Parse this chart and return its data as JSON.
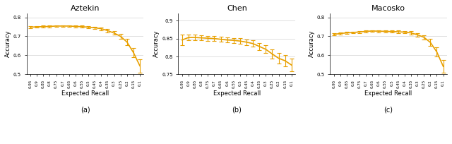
{
  "titles": [
    "Aztekin",
    "Chen",
    "Macosko"
  ],
  "sublabels": [
    "(a)",
    "(b)",
    "(c)"
  ],
  "xlabel": "Expected Recall",
  "ylabel": "Accuracy",
  "line_color": "#E8A000",
  "x_ticks": [
    0.95,
    0.9,
    0.85,
    0.8,
    0.75,
    0.7,
    0.65,
    0.6,
    0.55,
    0.5,
    0.45,
    0.4,
    0.35,
    0.3,
    0.25,
    0.2,
    0.15,
    0.1
  ],
  "aztekin": {
    "mean": [
      0.748,
      0.75,
      0.751,
      0.752,
      0.754,
      0.754,
      0.754,
      0.752,
      0.751,
      0.748,
      0.745,
      0.74,
      0.73,
      0.717,
      0.7,
      0.67,
      0.615,
      0.545
    ],
    "err": [
      0.005,
      0.005,
      0.005,
      0.005,
      0.005,
      0.005,
      0.005,
      0.005,
      0.005,
      0.005,
      0.006,
      0.007,
      0.008,
      0.009,
      0.012,
      0.018,
      0.025,
      0.035
    ],
    "ylim": [
      0.5,
      0.82
    ],
    "yticks": [
      0.5,
      0.6,
      0.7,
      0.8
    ]
  },
  "chen": {
    "mean": [
      0.846,
      0.853,
      0.853,
      0.852,
      0.851,
      0.85,
      0.848,
      0.846,
      0.845,
      0.843,
      0.84,
      0.836,
      0.828,
      0.82,
      0.807,
      0.795,
      0.788,
      0.776
    ],
    "err": [
      0.015,
      0.008,
      0.008,
      0.007,
      0.007,
      0.007,
      0.007,
      0.007,
      0.007,
      0.008,
      0.008,
      0.009,
      0.01,
      0.011,
      0.012,
      0.014,
      0.016,
      0.018
    ],
    "ylim": [
      0.75,
      0.92
    ],
    "yticks": [
      0.75,
      0.8,
      0.85,
      0.9
    ]
  },
  "macosko": {
    "mean": [
      0.71,
      0.715,
      0.718,
      0.72,
      0.723,
      0.726,
      0.728,
      0.727,
      0.726,
      0.725,
      0.724,
      0.722,
      0.718,
      0.708,
      0.695,
      0.668,
      0.618,
      0.542
    ],
    "err": [
      0.006,
      0.005,
      0.005,
      0.005,
      0.005,
      0.005,
      0.005,
      0.005,
      0.005,
      0.005,
      0.006,
      0.007,
      0.008,
      0.009,
      0.012,
      0.018,
      0.025,
      0.035
    ],
    "ylim": [
      0.5,
      0.82
    ],
    "yticks": [
      0.5,
      0.6,
      0.7,
      0.8
    ]
  }
}
